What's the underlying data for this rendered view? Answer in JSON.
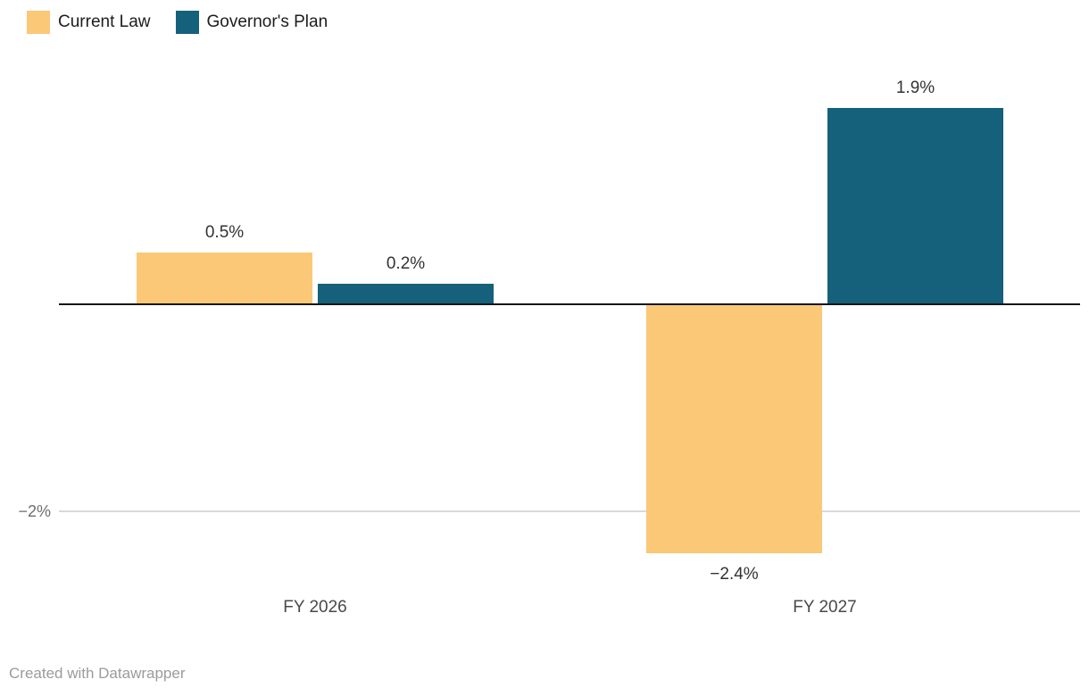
{
  "legend": {
    "items": [
      {
        "label": "Current Law",
        "color": "#fbc877"
      },
      {
        "label": "Governor's Plan",
        "color": "#15607a"
      }
    ]
  },
  "footer": {
    "credit": "Created with Datawrapper"
  },
  "chart_data": {
    "type": "bar",
    "title": "",
    "xlabel": "",
    "ylabel": "",
    "categories": [
      "FY 2026",
      "FY 2027"
    ],
    "series": [
      {
        "name": "Current Law",
        "color": "#fbc877",
        "values": [
          0.5,
          -2.4
        ],
        "value_labels": [
          "0.5%",
          "−2.4%"
        ]
      },
      {
        "name": "Governor's Plan",
        "color": "#15607a",
        "values": [
          0.2,
          1.9
        ],
        "value_labels": [
          "0.2%",
          "1.9%"
        ]
      }
    ],
    "ylim": [
      -2.6,
      2.1
    ],
    "yticks": [
      -2
    ],
    "ytick_labels": [
      "−2%"
    ],
    "baseline": 0,
    "grid": "horizontal",
    "legend_position": "top-left",
    "value_labels_shown": true,
    "colors": {
      "zero_line": "#161616",
      "gridline": "#d9d9d9",
      "value_label_text": "#333333",
      "tick_label_text": "#6e6e6e",
      "category_label_text": "#494949",
      "credit_text": "#9b9b9b"
    }
  }
}
